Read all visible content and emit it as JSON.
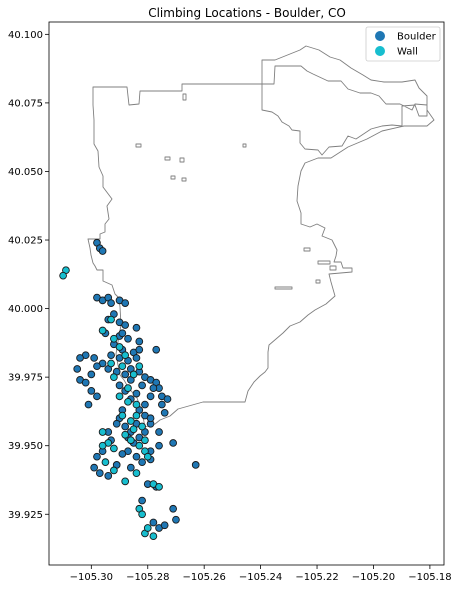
{
  "chart_data": {
    "type": "scatter",
    "title": "Climbing Locations - Boulder, CO",
    "xlabel": "",
    "ylabel": "",
    "xlim": [
      -105.315,
      -105.175
    ],
    "ylim": [
      39.9065,
      40.1045
    ],
    "x_ticks": [
      "−105.30",
      "−105.28",
      "−105.26",
      "−105.24",
      "−105.22",
      "−105.20",
      "−105.18"
    ],
    "x_tick_values": [
      -105.3,
      -105.28,
      -105.26,
      -105.24,
      -105.22,
      -105.2,
      -105.18
    ],
    "y_ticks": [
      "39.925",
      "39.950",
      "39.975",
      "40.000",
      "40.025",
      "40.050",
      "40.075",
      "40.100"
    ],
    "y_tick_values": [
      39.925,
      39.95,
      39.975,
      40.0,
      40.025,
      40.05,
      40.075,
      40.1
    ],
    "grid": false,
    "legend_position": "top-right",
    "series": [
      {
        "name": "Boulder",
        "color": "#1f77b4",
        "points": [
          [
            -105.298,
            40.024
          ],
          [
            -105.297,
            40.022
          ],
          [
            -105.296,
            40.021
          ],
          [
            -105.298,
            40.004
          ],
          [
            -105.296,
            40.003
          ],
          [
            -105.294,
            40.004
          ],
          [
            -105.293,
            40.002
          ],
          [
            -105.29,
            40.003
          ],
          [
            -105.288,
            40.002
          ],
          [
            -105.292,
            39.998
          ],
          [
            -105.294,
            39.996
          ],
          [
            -105.29,
            39.995
          ],
          [
            -105.288,
            39.994
          ],
          [
            -105.295,
            39.991
          ],
          [
            -105.29,
            39.99
          ],
          [
            -105.287,
            39.989
          ],
          [
            -105.292,
            39.987
          ],
          [
            -105.289,
            39.985
          ],
          [
            -105.285,
            39.984
          ],
          [
            -105.283,
            39.985
          ],
          [
            -105.293,
            39.983
          ],
          [
            -105.29,
            39.982
          ],
          [
            -105.287,
            39.981
          ],
          [
            -105.284,
            39.982
          ],
          [
            -105.296,
            39.98
          ],
          [
            -105.294,
            39.978
          ],
          [
            -105.291,
            39.977
          ],
          [
            -105.288,
            39.976
          ],
          [
            -105.286,
            39.978
          ],
          [
            -105.283,
            39.977
          ],
          [
            -105.281,
            39.975
          ],
          [
            -105.279,
            39.974
          ],
          [
            -105.277,
            39.973
          ],
          [
            -105.276,
            39.971
          ],
          [
            -105.275,
            39.968
          ],
          [
            -105.275,
            39.965
          ],
          [
            -105.274,
            39.962
          ],
          [
            -105.282,
            39.972
          ],
          [
            -105.284,
            39.969
          ],
          [
            -105.286,
            39.967
          ],
          [
            -105.288,
            39.97
          ],
          [
            -105.29,
            39.972
          ],
          [
            -105.283,
            39.963
          ],
          [
            -105.281,
            39.961
          ],
          [
            -105.279,
            39.958
          ],
          [
            -105.281,
            39.955
          ],
          [
            -105.283,
            39.953
          ],
          [
            -105.285,
            39.951
          ],
          [
            -105.287,
            39.948
          ],
          [
            -105.284,
            39.946
          ],
          [
            -105.282,
            39.944
          ],
          [
            -105.279,
            39.945
          ],
          [
            -105.293,
            39.952
          ],
          [
            -105.296,
            39.948
          ],
          [
            -105.298,
            39.946
          ],
          [
            -105.299,
            39.942
          ],
          [
            -105.297,
            39.94
          ],
          [
            -105.294,
            39.939
          ],
          [
            -105.291,
            39.943
          ],
          [
            -105.286,
            39.942
          ],
          [
            -105.282,
            39.93
          ],
          [
            -105.278,
            39.922
          ],
          [
            -105.276,
            39.92
          ],
          [
            -105.274,
            39.921
          ],
          [
            -105.27,
            39.923
          ],
          [
            -105.271,
            39.927
          ],
          [
            -105.277,
            39.935
          ],
          [
            -105.28,
            39.936
          ],
          [
            -105.263,
            39.943
          ],
          [
            -105.271,
            39.951
          ],
          [
            -105.273,
            39.967
          ],
          [
            -105.277,
            39.985
          ],
          [
            -105.302,
            39.983
          ],
          [
            -105.304,
            39.982
          ],
          [
            -105.305,
            39.978
          ],
          [
            -105.304,
            39.974
          ],
          [
            -105.302,
            39.973
          ],
          [
            -105.3,
            39.976
          ],
          [
            -105.298,
            39.979
          ],
          [
            -105.299,
            39.982
          ],
          [
            -105.3,
            39.97
          ],
          [
            -105.298,
            39.968
          ],
          [
            -105.301,
            39.965
          ],
          [
            -105.29,
            39.96
          ],
          [
            -105.288,
            39.957
          ],
          [
            -105.286,
            39.955
          ],
          [
            -105.284,
            39.958
          ],
          [
            -105.279,
            39.948
          ],
          [
            -105.276,
            39.95
          ],
          [
            -105.276,
            39.955
          ],
          [
            -105.279,
            39.96
          ],
          [
            -105.281,
            39.965
          ],
          [
            -105.279,
            39.968
          ],
          [
            -105.278,
            39.971
          ],
          [
            -105.283,
            39.988
          ],
          [
            -105.289,
            39.991
          ],
          [
            -105.284,
            39.993
          ],
          [
            -105.286,
            39.974
          ],
          [
            -105.289,
            39.963
          ],
          [
            -105.291,
            39.958
          ],
          [
            -105.294,
            39.955
          ],
          [
            -105.289,
            39.947
          ],
          [
            -105.287,
            39.953
          ]
        ]
      },
      {
        "name": "Wall",
        "color": "#17becf",
        "points": [
          [
            -105.309,
            40.014
          ],
          [
            -105.31,
            40.012
          ],
          [
            -105.296,
            39.992
          ],
          [
            -105.292,
            39.989
          ],
          [
            -105.29,
            39.986
          ],
          [
            -105.293,
            39.98
          ],
          [
            -105.289,
            39.979
          ],
          [
            -105.292,
            39.975
          ],
          [
            -105.29,
            39.968
          ],
          [
            -105.287,
            39.966
          ],
          [
            -105.289,
            39.961
          ],
          [
            -105.286,
            39.959
          ],
          [
            -105.284,
            39.961
          ],
          [
            -105.282,
            39.957
          ],
          [
            -105.285,
            39.956
          ],
          [
            -105.288,
            39.954
          ],
          [
            -105.286,
            39.952
          ],
          [
            -105.283,
            39.95
          ],
          [
            -105.281,
            39.948
          ],
          [
            -105.292,
            39.949
          ],
          [
            -105.294,
            39.951
          ],
          [
            -105.296,
            39.95
          ],
          [
            -105.295,
            39.944
          ],
          [
            -105.292,
            39.941
          ],
          [
            -105.288,
            39.937
          ],
          [
            -105.283,
            39.927
          ],
          [
            -105.282,
            39.925
          ],
          [
            -105.281,
            39.918
          ],
          [
            -105.278,
            39.917
          ],
          [
            -105.28,
            39.92
          ],
          [
            -105.278,
            39.936
          ],
          [
            -105.276,
            39.935
          ],
          [
            -105.293,
            39.996
          ],
          [
            -105.288,
            39.983
          ],
          [
            -105.283,
            39.979
          ],
          [
            -105.285,
            39.976
          ],
          [
            -105.287,
            39.971
          ],
          [
            -105.284,
            39.965
          ],
          [
            -105.281,
            39.952
          ],
          [
            -105.284,
            39.94
          ],
          [
            -105.28,
            39.946
          ],
          [
            -105.296,
            39.955
          ]
        ]
      }
    ]
  }
}
